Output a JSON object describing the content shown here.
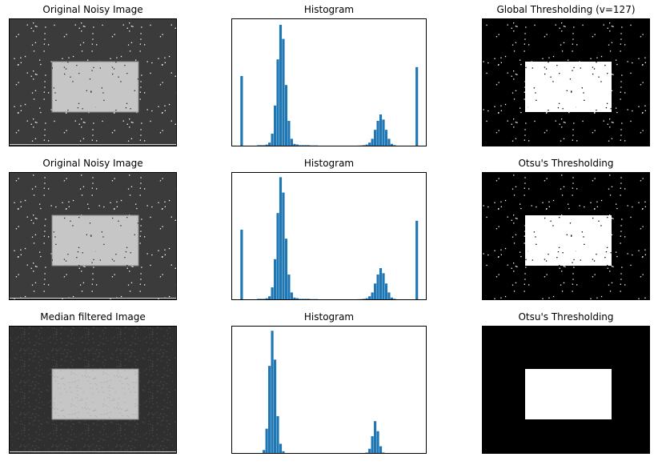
{
  "images": [
    {
      "title": "Original Noisy Image"
    },
    {
      "title": "Global Thresholding (v=127)"
    },
    {
      "title": "Original Noisy Image"
    },
    {
      "title": "Otsu's Thresholding"
    },
    {
      "title": "Median filtered Image"
    },
    {
      "title": "Otsu's Thresholding"
    }
  ],
  "chart_data": [
    {
      "type": "histogram",
      "title": "Histogram",
      "color": "#1f77b4",
      "xlim": [
        -13,
        268
      ],
      "ylim": [
        0,
        100
      ],
      "bins": [
        0,
        4,
        8,
        12,
        16,
        20,
        24,
        28,
        32,
        36,
        40,
        44,
        48,
        52,
        56,
        60,
        64,
        68,
        72,
        76,
        80,
        84,
        88,
        92,
        96,
        100,
        104,
        108,
        112,
        116,
        120,
        124,
        128,
        132,
        136,
        140,
        144,
        148,
        152,
        156,
        160,
        164,
        168,
        172,
        176,
        180,
        184,
        188,
        192,
        196,
        200,
        204,
        208,
        212,
        216,
        220,
        224,
        228,
        232,
        236,
        240,
        244,
        248,
        252,
        256
      ],
      "values": [
        55,
        0,
        0,
        0,
        0,
        0.5,
        1,
        1,
        1,
        1.5,
        3,
        10,
        32,
        68,
        95,
        84,
        48,
        20,
        6,
        2,
        1.5,
        1,
        1,
        1,
        1,
        0.8,
        0.8,
        0.8,
        0.6,
        0.5,
        0.5,
        0.5,
        0.5,
        0.5,
        0.5,
        0.5,
        0.5,
        0.5,
        0.5,
        0.5,
        0.5,
        0.6,
        0.7,
        0.8,
        1,
        1.5,
        3,
        6,
        13,
        20,
        25,
        21,
        13,
        6,
        2,
        1,
        0.5,
        0.5,
        0.5,
        0.5,
        0.5,
        0.5,
        0.5,
        62
      ]
    },
    {
      "type": "histogram",
      "title": "Histogram",
      "color": "#1f77b4",
      "xlim": [
        -13,
        268
      ],
      "ylim": [
        0,
        100
      ],
      "bins": [
        0,
        4,
        8,
        12,
        16,
        20,
        24,
        28,
        32,
        36,
        40,
        44,
        48,
        52,
        56,
        60,
        64,
        68,
        72,
        76,
        80,
        84,
        88,
        92,
        96,
        100,
        104,
        108,
        112,
        116,
        120,
        124,
        128,
        132,
        136,
        140,
        144,
        148,
        152,
        156,
        160,
        164,
        168,
        172,
        176,
        180,
        184,
        188,
        192,
        196,
        200,
        204,
        208,
        212,
        216,
        220,
        224,
        228,
        232,
        236,
        240,
        244,
        248,
        252,
        256
      ],
      "values": [
        55,
        0,
        0,
        0,
        0,
        0.5,
        1,
        1,
        1,
        1.5,
        3,
        10,
        32,
        68,
        96,
        84,
        48,
        20,
        6,
        2,
        1.5,
        1,
        1,
        1,
        1,
        0.8,
        0.8,
        0.8,
        0.6,
        0.5,
        0.5,
        0.5,
        0.5,
        0.5,
        0.5,
        0.5,
        0.5,
        0.5,
        0.5,
        0.5,
        0.5,
        0.6,
        0.7,
        0.8,
        1,
        1.5,
        3,
        6,
        13,
        20,
        25,
        21,
        13,
        6,
        2,
        1,
        0.5,
        0.5,
        0.5,
        0.5,
        0.5,
        0.5,
        0.5,
        62
      ]
    },
    {
      "type": "histogram",
      "title": "Histogram",
      "color": "#1f77b4",
      "xlim": [
        -13,
        268
      ],
      "ylim": [
        0,
        102
      ],
      "bins": [
        0,
        4,
        8,
        12,
        16,
        20,
        24,
        28,
        32,
        36,
        40,
        44,
        48,
        52,
        56,
        60,
        64,
        68,
        72,
        76,
        80,
        84,
        88,
        92,
        96,
        100,
        104,
        108,
        112,
        116,
        120,
        124,
        128,
        132,
        136,
        140,
        144,
        148,
        152,
        156,
        160,
        164,
        168,
        172,
        176,
        180,
        184,
        188,
        192,
        196,
        200,
        204,
        208,
        212,
        216,
        220,
        224,
        228,
        232,
        236,
        240,
        244,
        248,
        252,
        256
      ],
      "values": [
        0,
        0,
        0,
        0,
        0,
        0,
        0,
        0.5,
        3,
        20,
        70,
        98,
        75,
        30,
        8,
        2,
        0.5,
        0.3,
        0.3,
        0.3,
        0.3,
        0.3,
        0.3,
        0.3,
        0.3,
        0.3,
        0.3,
        0.3,
        0.3,
        0.3,
        0.3,
        0.3,
        0.3,
        0.3,
        0.3,
        0.3,
        0.3,
        0.3,
        0.3,
        0.3,
        0.3,
        0.3,
        0.3,
        0.3,
        0.5,
        1,
        4,
        14,
        26,
        18,
        6,
        1,
        0,
        0,
        0,
        0,
        0,
        0,
        0,
        0,
        0,
        0,
        0,
        0
      ]
    }
  ]
}
